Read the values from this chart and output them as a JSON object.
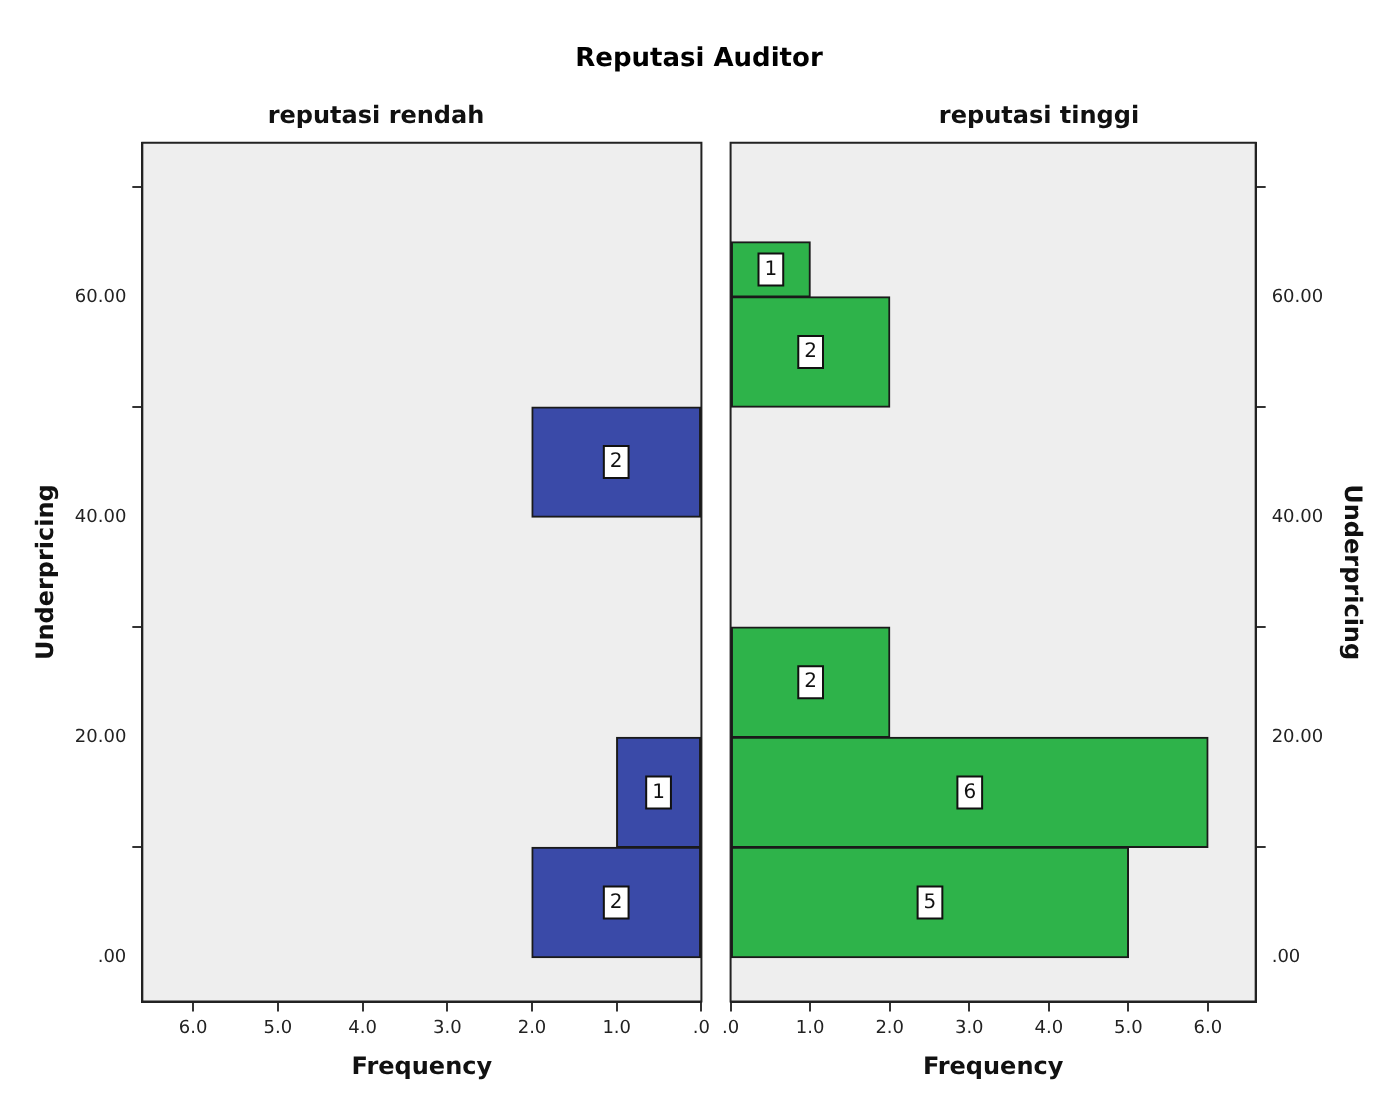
{
  "chart_data": [
    {
      "type": "histogram",
      "orientation": "horizontal",
      "title": "Reputasi Auditor",
      "subtitle": "reputasi rendah",
      "xlabel": "Frequency",
      "ylabel": "Underpricing",
      "bins": [
        0,
        10,
        20,
        30,
        40,
        50,
        60,
        65
      ],
      "values": [
        2,
        1,
        0,
        0,
        2,
        0,
        0
      ],
      "value_labels": [
        "2",
        "1",
        null,
        null,
        "2",
        null,
        null
      ],
      "color": "#3a4aa8",
      "xlim": [
        6.6,
        0
      ],
      "xticks": [
        {
          "value": 6,
          "label": "6.0"
        },
        {
          "value": 5,
          "label": "5.0"
        },
        {
          "value": 4,
          "label": "4.0"
        },
        {
          "value": 3,
          "label": "3.0"
        },
        {
          "value": 2,
          "label": "2.0"
        },
        {
          "value": 1,
          "label": "1.0"
        },
        {
          "value": 0,
          "label": ".0"
        }
      ],
      "ylim": [
        -4,
        74
      ],
      "yticks": [
        {
          "value": 0,
          "label": ".00"
        },
        {
          "value": 20,
          "label": "20.00"
        },
        {
          "value": 40,
          "label": "40.00"
        },
        {
          "value": 60,
          "label": "60.00"
        }
      ]
    },
    {
      "type": "histogram",
      "orientation": "horizontal",
      "subtitle": "reputasi tinggi",
      "xlabel": "Frequency",
      "ylabel": "Underpricing",
      "bins": [
        0,
        10,
        20,
        30,
        40,
        50,
        60,
        65
      ],
      "values": [
        5,
        6,
        2,
        0,
        0,
        2,
        1
      ],
      "value_labels": [
        "5",
        "6",
        "2",
        null,
        null,
        "2",
        "1"
      ],
      "color": "#2eb34a",
      "xlim": [
        0,
        6.6
      ],
      "xticks": [
        {
          "value": 0,
          "label": ".0"
        },
        {
          "value": 1,
          "label": "1.0"
        },
        {
          "value": 2,
          "label": "2.0"
        },
        {
          "value": 3,
          "label": "3.0"
        },
        {
          "value": 4,
          "label": "4.0"
        },
        {
          "value": 5,
          "label": "5.0"
        },
        {
          "value": 6,
          "label": "6.0"
        }
      ],
      "ylim": [
        -4,
        74
      ],
      "yticks": [
        {
          "value": 0,
          "label": ".00"
        },
        {
          "value": 20,
          "label": "20.00"
        },
        {
          "value": 40,
          "label": "40.00"
        },
        {
          "value": 60,
          "label": "60.00"
        }
      ]
    }
  ]
}
